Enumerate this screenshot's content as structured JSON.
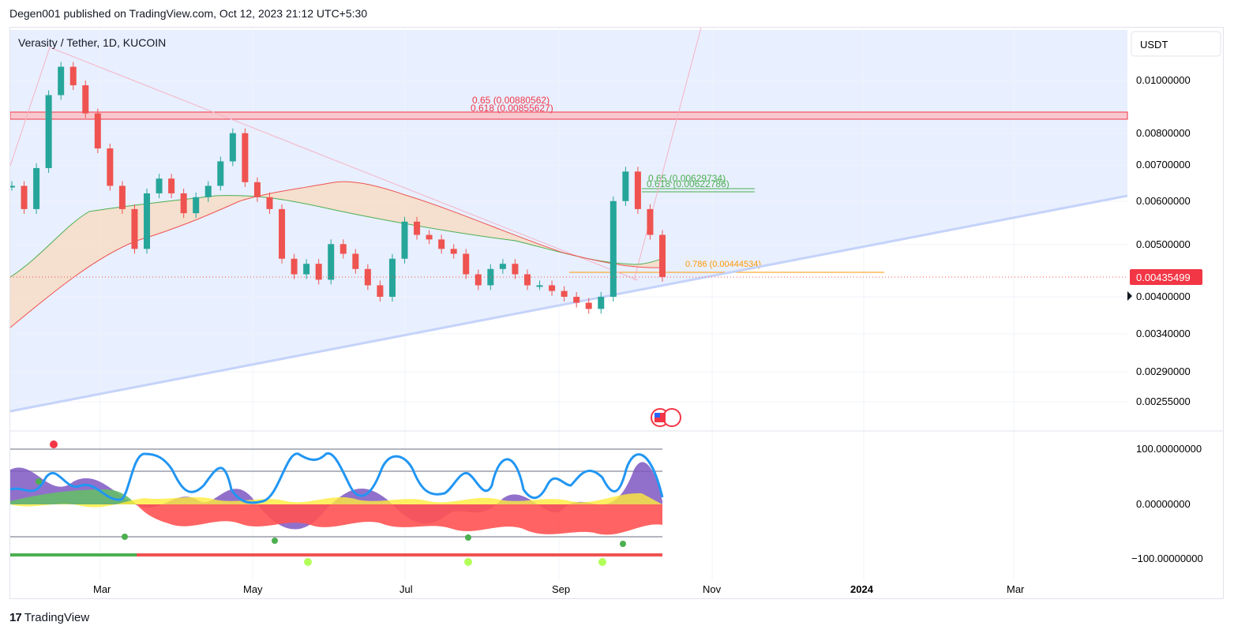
{
  "header": {
    "publish_line": "Degen001 published on TradingView.com, Oct 12, 2023 21:12 UTC+5:30"
  },
  "chart_title": "Verasity / Tether, 1D, KUCOIN",
  "currency_button": "USDT",
  "footer": {
    "logo_mark": "17",
    "brand": "TradingView"
  },
  "colors": {
    "bull": "#26a69a",
    "bear": "#ef5350",
    "fib_red": "#f23645",
    "fib_green": "#4caf50",
    "fib_orange": "#ff9800",
    "blue_line": "#2196f3",
    "purple": "#7e57c2"
  },
  "chart_data": {
    "type": "candlestick",
    "price_axis": {
      "scale": "log",
      "ticks": [
        "0.01000000",
        "0.00800000",
        "0.00700000",
        "0.00600000",
        "0.00500000",
        "0.00400000",
        "0.00340000",
        "0.00290000",
        "0.00255000"
      ],
      "last_price_label": "0.00435499"
    },
    "time_axis": {
      "ticks": [
        "Mar",
        "May",
        "Jul",
        "Sep",
        "Nov",
        "2024",
        "Mar"
      ]
    },
    "fib_levels": [
      {
        "label": "0.65 (0.00880562)",
        "value": 0.00880562
      },
      {
        "label": "0.618 (0.00855627)",
        "value": 0.00855627
      },
      {
        "label": "0.65 (0.00629734)",
        "value": 0.00629734
      },
      {
        "label": "0.618 (0.00622786)",
        "value": 0.00622786
      },
      {
        "label": "0.786 (0.00444534)",
        "value": 0.00444534
      }
    ],
    "close_series": [
      0.0064,
      0.0058,
      0.0069,
      0.0094,
      0.0106,
      0.0098,
      0.0087,
      0.0075,
      0.0064,
      0.0058,
      0.0049,
      0.0062,
      0.0066,
      0.0062,
      0.0057,
      0.0061,
      0.0064,
      0.0071,
      0.008,
      0.0065,
      0.0061,
      0.0058,
      0.0047,
      0.0044,
      0.0046,
      0.0043,
      0.005,
      0.0048,
      0.0045,
      0.0042,
      0.004,
      0.0047,
      0.0055,
      0.0052,
      0.0051,
      0.0049,
      0.0048,
      0.0044,
      0.0042,
      0.0045,
      0.0046,
      0.0044,
      0.0042,
      0.0042,
      0.0041,
      0.004,
      0.0039,
      0.0038,
      0.004,
      0.006,
      0.0068,
      0.0058,
      0.0052,
      0.00435
    ],
    "oscillator_axis": {
      "ticks": [
        "100.00000000",
        "0.00000000",
        "−100.00000000"
      ]
    }
  }
}
